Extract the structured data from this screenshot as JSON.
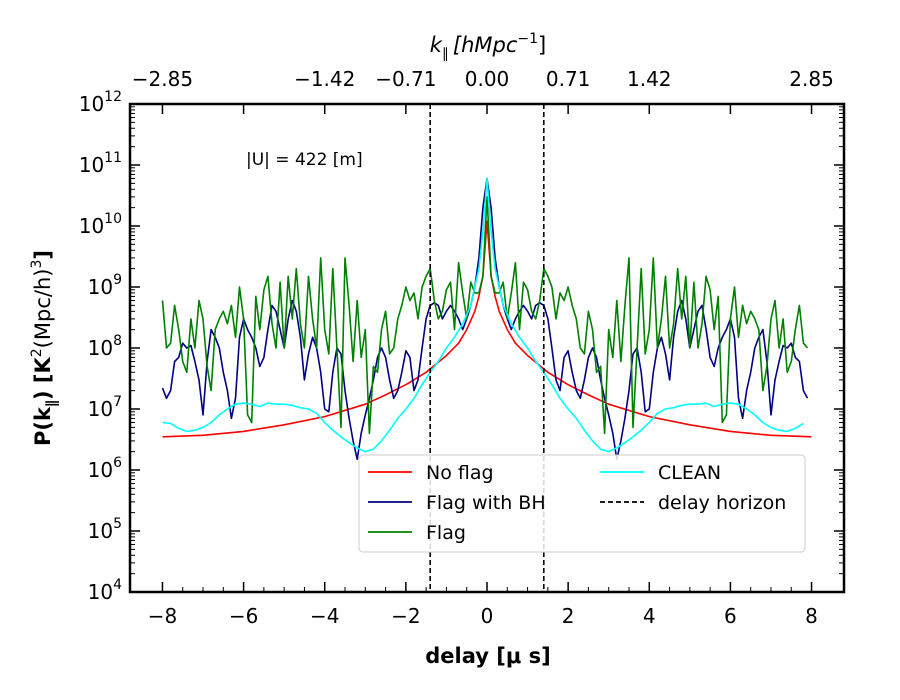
{
  "chart_data": {
    "type": "line",
    "xlabel": "delay [μ s]",
    "ylabel_main": "P(k",
    "ylabel_sub": "∥",
    "ylabel_tail": ") [K",
    "ylabel_sup": "2",
    "ylabel_end": "(Mpc/h)",
    "ylabel_sup2": "3",
    "ylabel_close": "]",
    "top_xlabel_k": "k",
    "top_xlabel_sub": "∥",
    "top_xlabel_unit": "[hMpc",
    "top_xlabel_sup": "−1",
    "top_xlabel_close": "]",
    "xlim": [
      -8.8,
      8.8
    ],
    "ylim": [
      10000,
      1000000000000
    ],
    "yscale": "log",
    "grid": false,
    "legend_position": "lower-center",
    "annotation": "|U| = 422 [m]",
    "x_ticks": [
      -8,
      -6,
      -4,
      -2,
      0,
      2,
      4,
      6,
      8
    ],
    "x_tick_labels": [
      "−8",
      "−6",
      "−4",
      "−2",
      "0",
      "2",
      "4",
      "6",
      "8"
    ],
    "y_tick_exponents": [
      "4",
      "5",
      "6",
      "7",
      "8",
      "9",
      "10",
      "11",
      "12"
    ],
    "y_tick_base": "10",
    "top_ticks": [
      -8,
      -4,
      -2,
      0,
      2,
      4,
      8
    ],
    "top_tick_labels": [
      "−2.85",
      "−1.42",
      "−0.71",
      "0.00",
      "0.71",
      "1.42",
      "2.85"
    ],
    "delay_horizon": [
      -1.4,
      1.4
    ],
    "series": [
      {
        "name": "No flag",
        "color": "#ff0000",
        "style": "solid",
        "x": [
          -8,
          -7,
          -6,
          -5,
          -4,
          -3,
          -2.5,
          -2,
          -1.5,
          -1,
          -0.7,
          -0.5,
          -0.3,
          -0.2,
          -0.1,
          0,
          0.1,
          0.2,
          0.3,
          0.5,
          0.7,
          1,
          1.5,
          2,
          2.5,
          3,
          4,
          5,
          6,
          7,
          8
        ],
        "y": [
          3500000,
          3700000,
          4300000,
          5500000,
          7500000,
          12000000,
          17000000,
          25000000,
          40000000,
          75000000,
          120000000,
          200000000,
          400000000,
          700000000,
          1500000000,
          12000000000,
          1500000000,
          700000000,
          400000000,
          200000000,
          120000000,
          75000000,
          40000000,
          25000000,
          17000000,
          12000000,
          7500000,
          5500000,
          4300000,
          3700000,
          3500000
        ]
      },
      {
        "name": "Flag with BH",
        "color": "#000080",
        "style": "solid",
        "x": [
          -8,
          -7.9,
          -7.8,
          -7.7,
          -7.6,
          -7.5,
          -7.4,
          -7.3,
          -7.2,
          -7.1,
          -7,
          -6.9,
          -6.8,
          -6.7,
          -6.6,
          -6.5,
          -6.4,
          -6.3,
          -6.2,
          -6.1,
          -6,
          -5.9,
          -5.8,
          -5.7,
          -5.6,
          -5.5,
          -5.4,
          -5.3,
          -5.2,
          -5.1,
          -5,
          -4.9,
          -4.8,
          -4.7,
          -4.6,
          -4.5,
          -4.4,
          -4.3,
          -4.2,
          -4.1,
          -4,
          -3.9,
          -3.8,
          -3.7,
          -3.6,
          -3.5,
          -3.4,
          -3.3,
          -3.2,
          -3.1,
          -3,
          -2.9,
          -2.8,
          -2.7,
          -2.6,
          -2.5,
          -2.4,
          -2.3,
          -2.2,
          -2.1,
          -2,
          -1.9,
          -1.8,
          -1.7,
          -1.6,
          -1.5,
          -1.4,
          -1.3,
          -1.2,
          -1.1,
          -1,
          -0.9,
          -0.8,
          -0.7,
          -0.6,
          -0.5,
          -0.4,
          -0.3,
          -0.2,
          -0.1,
          0,
          0.1,
          0.2,
          0.3,
          0.4,
          0.5,
          0.6,
          0.7,
          0.8,
          0.9,
          1,
          1.1,
          1.2,
          1.3,
          1.4,
          1.5,
          1.6,
          1.7,
          1.8,
          1.9,
          2,
          2.1,
          2.2,
          2.3,
          2.4,
          2.5,
          2.6,
          2.7,
          2.8,
          2.9,
          3,
          3.1,
          3.2,
          3.3,
          3.4,
          3.5,
          3.6,
          3.7,
          3.8,
          3.9,
          4,
          4.1,
          4.2,
          4.3,
          4.4,
          4.5,
          4.6,
          4.7,
          4.8,
          4.9,
          5,
          5.1,
          5.2,
          5.3,
          5.4,
          5.5,
          5.6,
          5.7,
          5.8,
          5.9,
          6,
          6.1,
          6.2,
          6.3,
          6.4,
          6.5,
          6.6,
          6.7,
          6.8,
          6.9,
          7,
          7.1,
          7.2,
          7.3,
          7.4,
          7.5,
          7.6,
          7.7,
          7.8,
          7.9
        ],
        "y": [
          22000000,
          15000000,
          20000000,
          60000000,
          70000000,
          120000000,
          100000000,
          110000000,
          60000000,
          30000000,
          8000000,
          60000000,
          200000000,
          150000000,
          100000000,
          40000000,
          20000000,
          7000000,
          15000000,
          150000000,
          300000000,
          200000000,
          150000000,
          100000000,
          50000000,
          70000000,
          200000000,
          500000000,
          400000000,
          200000000,
          100000000,
          300000000,
          600000000,
          400000000,
          150000000,
          30000000,
          80000000,
          150000000,
          100000000,
          40000000,
          10000000,
          9000000,
          40000000,
          100000000,
          80000000,
          20000000,
          7000000,
          3000000,
          1500000,
          4000000,
          8000000,
          15000000,
          30000000,
          70000000,
          100000000,
          70000000,
          30000000,
          15000000,
          20000000,
          40000000,
          90000000,
          70000000,
          20000000,
          30000000,
          100000000,
          300000000,
          500000000,
          550000000,
          500000000,
          300000000,
          400000000,
          500000000,
          400000000,
          300000000,
          200000000,
          300000000,
          500000000,
          1000000000,
          3000000000,
          20000000000,
          60000000000,
          20000000000,
          3000000000,
          1000000000,
          500000000,
          300000000,
          200000000,
          300000000,
          400000000,
          500000000,
          400000000,
          300000000,
          500000000,
          550000000,
          500000000,
          300000000,
          100000000,
          30000000,
          20000000,
          70000000,
          90000000,
          40000000,
          20000000,
          15000000,
          30000000,
          70000000,
          100000000,
          70000000,
          30000000,
          15000000,
          8000000,
          4000000,
          1500000,
          3000000,
          7000000,
          20000000,
          80000000,
          100000000,
          40000000,
          9000000,
          10000000,
          40000000,
          100000000,
          150000000,
          80000000,
          30000000,
          150000000,
          400000000,
          600000000,
          300000000,
          100000000,
          200000000,
          400000000,
          500000000,
          200000000,
          70000000,
          50000000,
          100000000,
          150000000,
          200000000,
          300000000,
          150000000,
          15000000,
          7000000,
          20000000,
          40000000,
          100000000,
          150000000,
          200000000,
          60000000,
          8000000,
          30000000,
          60000000,
          110000000,
          100000000,
          120000000,
          70000000,
          60000000,
          20000000,
          15000000
        ]
      },
      {
        "name": "Flag",
        "color": "#008000",
        "style": "solid",
        "x": [
          -8,
          -7.9,
          -7.8,
          -7.7,
          -7.6,
          -7.5,
          -7.4,
          -7.3,
          -7.2,
          -7.1,
          -7,
          -6.9,
          -6.8,
          -6.7,
          -6.6,
          -6.5,
          -6.4,
          -6.3,
          -6.2,
          -6.1,
          -6,
          -5.9,
          -5.8,
          -5.7,
          -5.6,
          -5.5,
          -5.4,
          -5.3,
          -5.2,
          -5.1,
          -5,
          -4.9,
          -4.8,
          -4.7,
          -4.6,
          -4.5,
          -4.4,
          -4.3,
          -4.2,
          -4.1,
          -4,
          -3.9,
          -3.8,
          -3.7,
          -3.6,
          -3.5,
          -3.4,
          -3.3,
          -3.2,
          -3.1,
          -3,
          -2.9,
          -2.8,
          -2.7,
          -2.6,
          -2.5,
          -2.4,
          -2.3,
          -2.2,
          -2.1,
          -2,
          -1.9,
          -1.8,
          -1.7,
          -1.6,
          -1.5,
          -1.4,
          -1.3,
          -1.2,
          -1.1,
          -1,
          -0.9,
          -0.8,
          -0.7,
          -0.6,
          -0.5,
          -0.4,
          -0.3,
          -0.2,
          -0.1,
          0,
          0.1,
          0.2,
          0.3,
          0.4,
          0.5,
          0.6,
          0.7,
          0.8,
          0.9,
          1,
          1.1,
          1.2,
          1.3,
          1.4,
          1.5,
          1.6,
          1.7,
          1.8,
          1.9,
          2,
          2.1,
          2.2,
          2.3,
          2.4,
          2.5,
          2.6,
          2.7,
          2.8,
          2.9,
          3,
          3.1,
          3.2,
          3.3,
          3.4,
          3.5,
          3.6,
          3.7,
          3.8,
          3.9,
          4,
          4.1,
          4.2,
          4.3,
          4.4,
          4.5,
          4.6,
          4.7,
          4.8,
          4.9,
          5,
          5.1,
          5.2,
          5.3,
          5.4,
          5.5,
          5.6,
          5.7,
          5.8,
          5.9,
          6,
          6.1,
          6.2,
          6.3,
          6.4,
          6.5,
          6.6,
          6.7,
          6.8,
          6.9,
          7,
          7.1,
          7.2,
          7.3,
          7.4,
          7.5,
          7.6,
          7.7,
          7.8,
          7.9
        ],
        "y": [
          600000000,
          100000000,
          120000000,
          500000000,
          200000000,
          60000000,
          40000000,
          300000000,
          100000000,
          600000000,
          300000000,
          50000000,
          20000000,
          200000000,
          300000000,
          400000000,
          250000000,
          500000000,
          150000000,
          1000000000,
          300000000,
          8000000,
          6000000,
          700000000,
          200000000,
          900000000,
          1500000000,
          250000000,
          100000000,
          1200000000,
          100000000,
          1500000000,
          300000000,
          2000000000,
          250000000,
          100000000,
          1500000000,
          300000000,
          100000000,
          3000000000,
          200000000,
          80000000,
          2000000000,
          100000000,
          5000000,
          3000000000,
          500000000,
          60000000,
          600000000,
          70000000,
          200000000,
          4000000,
          50000000,
          40000000,
          200000000,
          400000000,
          80000000,
          100000000,
          300000000,
          500000000,
          1000000000,
          600000000,
          800000000,
          300000000,
          1000000000,
          1500000000,
          2000000000,
          600000000,
          300000000,
          400000000,
          900000000,
          1200000000,
          200000000,
          2500000000,
          800000000,
          300000000,
          1200000000,
          800000000,
          800000000,
          1500000000,
          30000000000,
          1500000000,
          800000000,
          800000000,
          1200000000,
          300000000,
          800000000,
          2500000000,
          200000000,
          1200000000,
          900000000,
          400000000,
          300000000,
          600000000,
          2000000000,
          1500000000,
          1000000000,
          300000000,
          800000000,
          600000000,
          1000000000,
          500000000,
          300000000,
          100000000,
          80000000,
          400000000,
          200000000,
          40000000,
          50000000,
          4000000,
          200000000,
          70000000,
          600000000,
          60000000,
          500000000,
          3000000000,
          5000000,
          100000000,
          2000000000,
          80000000,
          200000000,
          3000000000,
          100000000,
          300000000,
          1500000000,
          100000000,
          250000000,
          2000000000,
          300000000,
          1500000000,
          100000000,
          1200000000,
          100000000,
          250000000,
          1500000000,
          900000000,
          200000000,
          700000000,
          6000000,
          8000000,
          300000000,
          1000000000,
          150000000,
          500000000,
          250000000,
          400000000,
          300000000,
          200000000,
          20000000,
          50000000,
          300000000,
          600000000,
          100000000,
          300000000,
          40000000,
          60000000,
          200000000,
          500000000,
          120000000,
          100000000
        ]
      },
      {
        "name": "CLEAN",
        "color": "#00ffff",
        "style": "solid",
        "x": [
          -8,
          -7.8,
          -7.6,
          -7.4,
          -7.2,
          -7,
          -6.8,
          -6.6,
          -6.4,
          -6.2,
          -6,
          -5.8,
          -5.6,
          -5.4,
          -5.2,
          -5,
          -4.8,
          -4.6,
          -4.4,
          -4.2,
          -4,
          -3.8,
          -3.6,
          -3.4,
          -3.2,
          -3,
          -2.8,
          -2.6,
          -2.4,
          -2.2,
          -2,
          -1.8,
          -1.6,
          -1.4,
          -1.2,
          -1,
          -0.8,
          -0.6,
          -0.4,
          -0.3,
          -0.2,
          -0.1,
          0,
          0.1,
          0.2,
          0.3,
          0.4,
          0.6,
          0.8,
          1,
          1.2,
          1.4,
          1.6,
          1.8,
          2,
          2.2,
          2.4,
          2.6,
          2.8,
          3,
          3.2,
          3.4,
          3.6,
          3.8,
          4,
          4.2,
          4.4,
          4.6,
          4.8,
          5,
          5.2,
          5.4,
          5.6,
          5.8,
          6,
          6.2,
          6.4,
          6.6,
          6.8,
          7,
          7.2,
          7.4,
          7.6,
          7.8
        ],
        "y": [
          6000000,
          5800000,
          4800000,
          4300000,
          4500000,
          5000000,
          6000000,
          8000000,
          10000000,
          12000000,
          12500000,
          12000000,
          11000000,
          12500000,
          12000000,
          12000000,
          11500000,
          10500000,
          10000000,
          8500000,
          6000000,
          4500000,
          3500000,
          2800000,
          2300000,
          2000000,
          2200000,
          3000000,
          4500000,
          7000000,
          10000000,
          15000000,
          25000000,
          40000000,
          60000000,
          100000000,
          150000000,
          250000000,
          500000000,
          1000000000,
          2000000000,
          8000000000,
          60000000000,
          8000000000,
          2000000000,
          1000000000,
          500000000,
          250000000,
          150000000,
          100000000,
          60000000,
          40000000,
          25000000,
          15000000,
          10000000,
          7000000,
          4500000,
          3000000,
          2200000,
          2000000,
          2300000,
          2800000,
          3500000,
          4500000,
          6000000,
          8500000,
          10000000,
          10500000,
          11500000,
          12000000,
          12000000,
          12500000,
          11000000,
          12000000,
          12500000,
          12000000,
          10000000,
          8000000,
          6000000,
          5000000,
          4500000,
          4300000,
          4800000,
          5800000
        ]
      }
    ],
    "horizon_series": {
      "name": "delay horizon",
      "color": "#000000",
      "style": "dashed"
    }
  }
}
